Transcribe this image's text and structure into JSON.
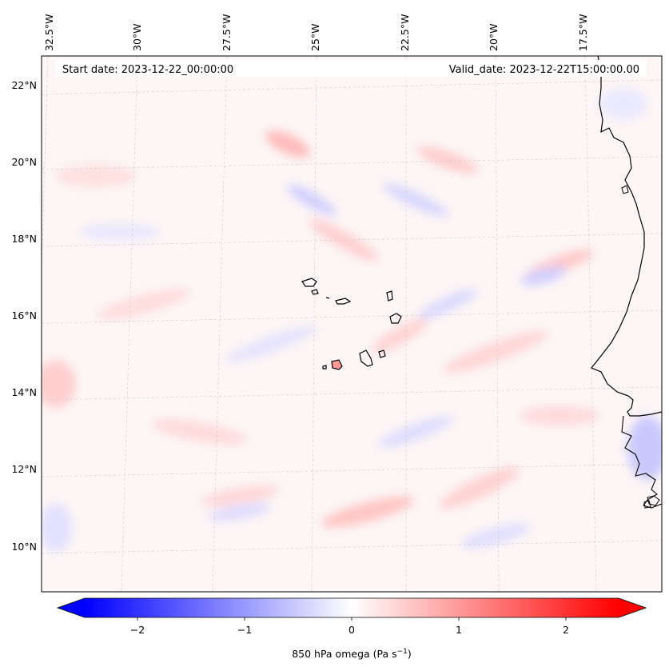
{
  "header": {
    "start_date": "Start date: 2023-12-22_00:00:00",
    "valid_date": "Valid_date: 2023-12-22T15:00:00.00"
  },
  "lon_labels": [
    "32.5°W",
    "30°W",
    "27.5°W",
    "25°W",
    "22.5°W",
    "20°W",
    "17.5°W"
  ],
  "lat_labels": [
    "22°N",
    "20°N",
    "18°N",
    "16°N",
    "14°N",
    "12°N",
    "10°N"
  ],
  "colorbar": {
    "label": "850 hPa omega (Pa s",
    "label_superscript": "−1",
    "label_suffix": ")",
    "ticks": [
      "−2",
      "−1",
      "0",
      "1",
      "2"
    ],
    "min": -2.5,
    "max": 2.5,
    "colors": {
      "low": "#0000ff",
      "mid": "#ffffff",
      "high": "#ff0000"
    }
  },
  "map": {
    "variable": "850 hPa omega",
    "coastline_color": "#000000"
  }
}
